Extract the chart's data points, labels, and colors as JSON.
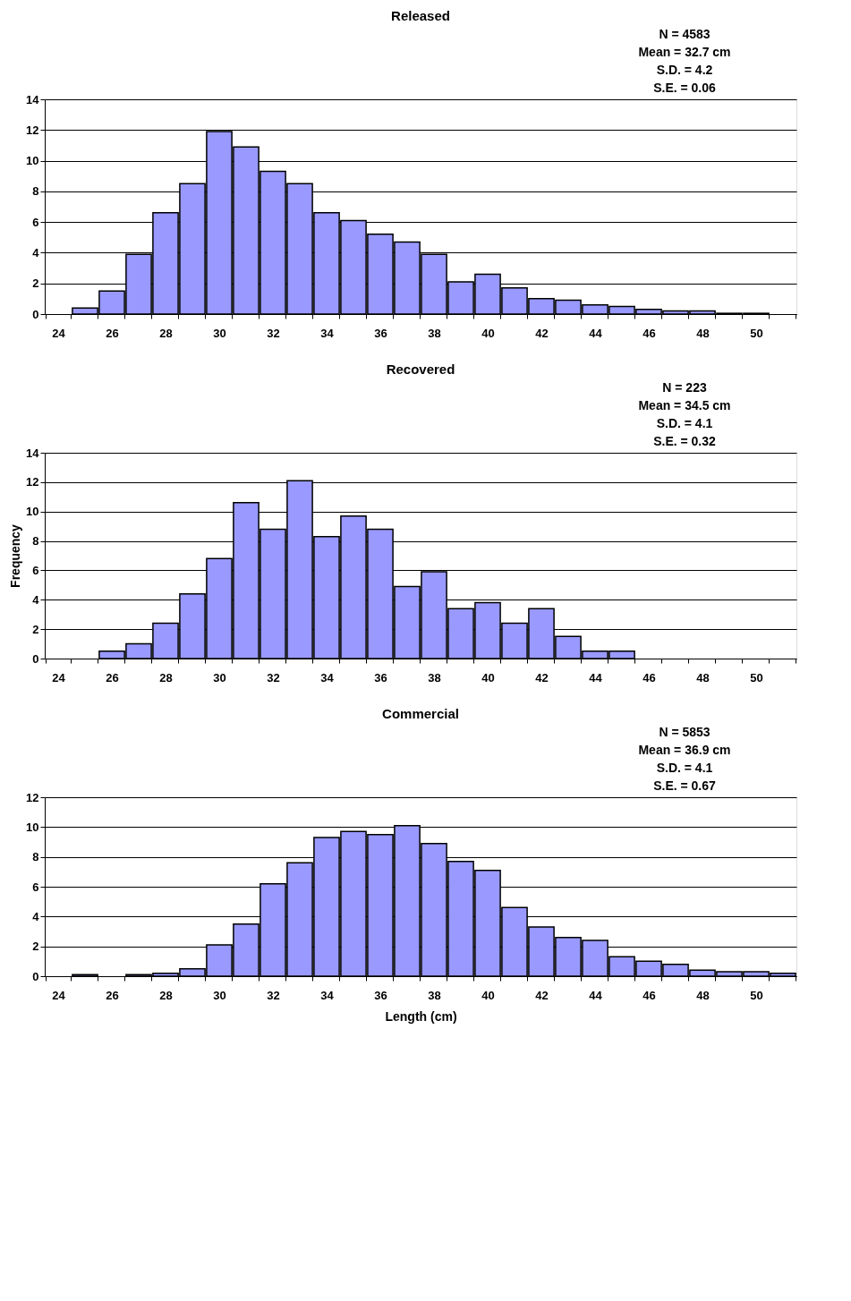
{
  "chart_data": [
    {
      "type": "bar",
      "title": "Released",
      "categories": [
        "24",
        null,
        "26",
        null,
        "28",
        null,
        "30",
        null,
        "32",
        null,
        "34",
        null,
        "36",
        null,
        "38",
        null,
        "40",
        null,
        "42",
        null,
        "44",
        null,
        "46",
        null,
        "48",
        null,
        "50",
        null
      ],
      "values": [
        0,
        0.4,
        1.5,
        3.9,
        6.6,
        8.5,
        11.9,
        10.9,
        9.3,
        8.5,
        6.6,
        6.1,
        5.2,
        4.7,
        3.9,
        2.1,
        2.6,
        1.7,
        1.0,
        0.9,
        0.6,
        0.5,
        0.3,
        0.2,
        0.2,
        0.05,
        0.05,
        0
      ],
      "color": "#9999ff",
      "ylim": [
        0,
        14
      ],
      "yticks": [
        0,
        2,
        4,
        6,
        8,
        10,
        12,
        14
      ],
      "grid": "y",
      "annotations": [
        "N = 4583",
        "Mean = 32.7 cm",
        "S.D. = 4.2",
        "S.E. = 0.06"
      ]
    },
    {
      "type": "bar",
      "title": "Recovered",
      "ylabel": "Frequency",
      "categories": [
        "24",
        null,
        "26",
        null,
        "28",
        null,
        "30",
        null,
        "32",
        null,
        "34",
        null,
        "36",
        null,
        "38",
        null,
        "40",
        null,
        "42",
        null,
        "44",
        null,
        "46",
        null,
        "48",
        null,
        "50",
        null
      ],
      "values": [
        0,
        0,
        0.5,
        1.0,
        2.4,
        4.4,
        6.8,
        10.6,
        8.8,
        12.1,
        8.3,
        9.7,
        8.8,
        4.9,
        5.9,
        3.4,
        3.8,
        2.4,
        3.4,
        1.5,
        0.5,
        0.5,
        0,
        0,
        0,
        0,
        0,
        0
      ],
      "color": "#9999ff",
      "ylim": [
        0,
        14
      ],
      "yticks": [
        0,
        2,
        4,
        6,
        8,
        10,
        12,
        14
      ],
      "grid": "y",
      "annotations": [
        "N = 223",
        "Mean = 34.5 cm",
        "S.D. = 4.1",
        "S.E. = 0.32"
      ]
    },
    {
      "type": "bar",
      "title": "Commercial",
      "xlabel": "Length (cm)",
      "categories": [
        "24",
        null,
        "26",
        null,
        "28",
        null,
        "30",
        null,
        "32",
        null,
        "34",
        null,
        "36",
        null,
        "38",
        null,
        "40",
        null,
        "42",
        null,
        "44",
        null,
        "46",
        null,
        "48",
        null,
        "50",
        null
      ],
      "values": [
        0,
        0.1,
        0,
        0.1,
        0.2,
        0.5,
        2.1,
        3.5,
        6.2,
        7.6,
        9.3,
        9.7,
        9.5,
        10.1,
        8.9,
        7.7,
        7.1,
        4.6,
        3.3,
        2.6,
        2.4,
        1.3,
        1.0,
        0.8,
        0.4,
        0.3,
        0.3,
        0.2
      ],
      "color": "#9999ff",
      "ylim": [
        0,
        12
      ],
      "yticks": [
        0,
        2,
        4,
        6,
        8,
        10,
        12
      ],
      "grid": "y",
      "annotations": [
        "N = 5853",
        "Mean = 36.9 cm",
        "S.D. = 4.1",
        "S.E. =  0.67"
      ]
    }
  ]
}
